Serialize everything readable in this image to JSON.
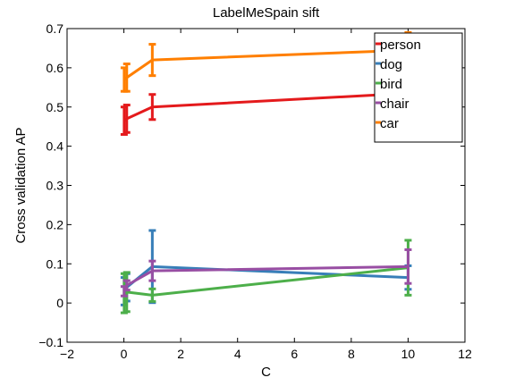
{
  "chart_data": {
    "type": "line",
    "title": "LabelMeSpain sift",
    "xlabel": "C",
    "ylabel": "Cross validation AP",
    "xlim": [
      -2,
      12
    ],
    "ylim": [
      -0.1,
      0.7
    ],
    "xticks": [
      -2,
      0,
      2,
      4,
      6,
      8,
      10,
      12
    ],
    "yticks": [
      -0.1,
      0,
      0.1,
      0.2,
      0.3,
      0.4,
      0.5,
      0.6,
      0.7
    ],
    "xtick_labels": [
      "−2",
      "0",
      "2",
      "4",
      "6",
      "8",
      "10",
      "12"
    ],
    "ytick_labels": [
      "−0.1",
      "0",
      "0.1",
      "0.2",
      "0.3",
      "0.4",
      "0.5",
      "0.6",
      "0.7"
    ],
    "grid": false,
    "legend_position": "top-right",
    "x": [
      0.01,
      0.1,
      1,
      10
    ],
    "series": [
      {
        "name": "person",
        "color": "#e41a1c",
        "values": [
          0.465,
          0.47,
          0.5,
          0.535
        ],
        "err": [
          0.035,
          0.035,
          0.032,
          0.03
        ]
      },
      {
        "name": "dog",
        "color": "#377eb8",
        "values": [
          0.03,
          0.04,
          0.093,
          0.065
        ],
        "err": [
          0.035,
          0.035,
          0.092,
          0.03
        ]
      },
      {
        "name": "bird",
        "color": "#4daf4a",
        "values": [
          0.025,
          0.028,
          0.02,
          0.09
        ],
        "err": [
          0.05,
          0.05,
          0.016,
          0.07
        ]
      },
      {
        "name": "chair",
        "color": "#984ea3",
        "values": [
          0.03,
          0.045,
          0.082,
          0.093
        ],
        "err": [
          0.012,
          0.012,
          0.025,
          0.043
        ]
      },
      {
        "name": "car",
        "color": "#ff7f00",
        "values": [
          0.57,
          0.575,
          0.62,
          0.645
        ],
        "err": [
          0.03,
          0.035,
          0.04,
          0.045
        ]
      }
    ]
  }
}
